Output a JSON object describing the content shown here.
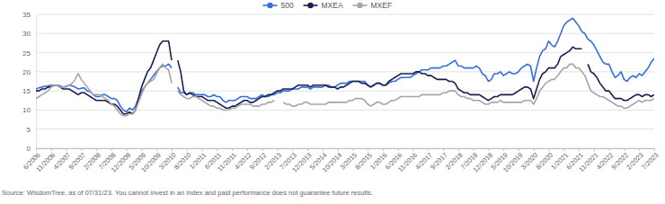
{
  "chart_data": {
    "type": "line",
    "categories": [
      "6/2006",
      null,
      null,
      null,
      null,
      "11/2006",
      null,
      null,
      null,
      null,
      "4/2007",
      null,
      null,
      null,
      null,
      "9/2007",
      null,
      null,
      null,
      null,
      "2/2008",
      null,
      null,
      null,
      null,
      "7/2008",
      null,
      null,
      null,
      null,
      "12/2008",
      null,
      null,
      null,
      null,
      "5/2009",
      null,
      null,
      null,
      null,
      "10/2009",
      null,
      null,
      null,
      null,
      "3/2010",
      null,
      null,
      null,
      null,
      "8/2010",
      null,
      null,
      null,
      null,
      "1/2011",
      null,
      null,
      null,
      null,
      "6/2011",
      null,
      null,
      null,
      null,
      "11/2011",
      null,
      null,
      null,
      null,
      "4/2012",
      null,
      null,
      null,
      null,
      "9/2012",
      null,
      null,
      null,
      null,
      "2/2013",
      null,
      null,
      null,
      null,
      "7/2013",
      null,
      null,
      null,
      null,
      "12/2013",
      null,
      null,
      null,
      null,
      "5/2014",
      null,
      null,
      null,
      null,
      "10/2014",
      null,
      null,
      null,
      null,
      "3/2015",
      null,
      null,
      null,
      null,
      "8/2015",
      null,
      null,
      null,
      null,
      "1/2016",
      null,
      null,
      null,
      null,
      "6/2016",
      null,
      null,
      null,
      null,
      "11/2016",
      null,
      null,
      null,
      null,
      "4/2017",
      null,
      null,
      null,
      null,
      "9/2017",
      null,
      null,
      null,
      null,
      "2/2018",
      null,
      null,
      null,
      null,
      "7/2018",
      null,
      null,
      null,
      null,
      "12/2018",
      null,
      null,
      null,
      null,
      "5/2019",
      null,
      null,
      null,
      null,
      "10/2019",
      null,
      null,
      null,
      null,
      "3/2020",
      null,
      null,
      null,
      null,
      "8/2020",
      null,
      null,
      null,
      null,
      "1/2021",
      null,
      null,
      null,
      null,
      "6/2021",
      null,
      null,
      null,
      null,
      "11/2021",
      null,
      null,
      null,
      null,
      "4/2022",
      null,
      null,
      null,
      null,
      "9/2022",
      null,
      null,
      null,
      null,
      "2/2023",
      null,
      null,
      null,
      null,
      "7/2023"
    ],
    "series": [
      {
        "name": "500",
        "color": "#3470dc",
        "values": [
          15.5,
          15.8,
          16,
          16.2,
          16.3,
          16.5,
          16.5,
          16.5,
          16.3,
          16,
          16.2,
          16.5,
          16.3,
          16,
          15.5,
          15.7,
          15.8,
          15,
          14.8,
          14,
          13.5,
          13.5,
          14,
          14,
          13.5,
          13,
          13,
          12.5,
          11,
          10,
          9.5,
          10.5,
          10,
          11,
          13,
          15,
          16,
          17,
          18,
          19,
          20,
          21,
          21.5,
          21.5,
          22,
          21,
          null,
          16,
          14.5,
          14.5,
          14,
          14.5,
          14.5,
          14,
          14,
          14,
          14,
          13.5,
          13.5,
          14,
          13.5,
          13.5,
          12.5,
          12,
          12.5,
          12.5,
          12.5,
          13,
          13.5,
          13.5,
          13.5,
          13,
          13,
          13,
          13.5,
          14,
          13.5,
          13.5,
          14,
          14,
          14.5,
          14.5,
          15,
          15,
          15,
          15.5,
          15.5,
          15.5,
          16,
          16,
          16,
          15.5,
          16,
          16,
          16,
          16,
          16.5,
          16.5,
          16,
          16,
          16.5,
          17,
          17,
          17,
          17.5,
          17.5,
          17.5,
          17.5,
          17.5,
          17.5,
          16.5,
          16,
          16.5,
          17,
          17,
          16.5,
          16.5,
          17,
          17.5,
          17.5,
          18,
          18.5,
          18.5,
          18.5,
          18.5,
          19,
          19.5,
          20,
          20.5,
          20.5,
          20.5,
          21,
          21,
          21,
          21,
          21.5,
          21.5,
          22,
          22.5,
          23,
          21.5,
          21.5,
          21,
          21,
          21,
          21,
          21.5,
          21,
          19.5,
          19,
          17.5,
          18,
          19.5,
          19.5,
          20,
          19,
          19.5,
          20,
          19.5,
          19.5,
          20,
          21,
          21.5,
          22,
          21.5,
          17.5,
          21,
          24,
          25.5,
          26,
          28,
          27,
          26.5,
          28,
          30,
          32,
          33,
          33.5,
          34,
          33,
          32,
          30.5,
          30,
          28.5,
          28,
          27,
          25.5,
          24,
          22.5,
          22,
          22,
          20,
          18.5,
          19,
          20,
          18,
          17.5,
          18.5,
          19,
          18.5,
          19.5,
          19,
          20,
          21,
          22.5,
          23.5
        ]
      },
      {
        "name": "MXEA",
        "color": "#1c1f4d",
        "values": [
          15,
          15,
          15.5,
          15.5,
          16,
          16,
          16.5,
          16.5,
          16,
          15.5,
          15.5,
          15.5,
          15,
          14.5,
          14,
          14.5,
          14.5,
          14,
          13.5,
          13,
          12.5,
          12.5,
          12.5,
          12.5,
          12,
          11.5,
          11.5,
          11,
          10,
          9,
          9,
          9.5,
          9,
          10,
          13,
          16,
          18,
          20,
          21,
          23,
          25,
          27,
          28,
          28,
          28,
          23,
          null,
          23,
          20,
          15,
          14,
          14.5,
          14,
          13.5,
          13.5,
          13.5,
          13,
          12.5,
          12.5,
          12.5,
          12,
          11.5,
          11,
          10.5,
          10.5,
          11,
          11,
          11.5,
          12,
          12.5,
          12.5,
          12,
          12,
          12.5,
          13,
          13.5,
          13.5,
          14,
          14,
          14.5,
          15,
          15,
          15.5,
          15.5,
          15.5,
          15.5,
          16,
          16.5,
          16.5,
          16.5,
          16.5,
          16,
          16.5,
          16.5,
          16.5,
          16.5,
          16.5,
          16,
          16,
          16,
          15.5,
          16,
          16,
          16.5,
          17,
          17.5,
          17.5,
          17.5,
          17,
          17,
          16.5,
          16,
          16.5,
          17,
          17,
          16.5,
          16.5,
          17.5,
          18,
          18.5,
          19,
          19.5,
          19.5,
          19.5,
          19.5,
          19.5,
          20,
          20,
          19.5,
          19.5,
          19,
          19,
          18.5,
          18,
          18,
          18,
          18,
          17.5,
          17.5,
          17,
          15.5,
          15,
          14.5,
          14.5,
          14,
          14,
          14,
          14,
          13.5,
          13,
          12.5,
          13,
          13.5,
          13.5,
          14,
          14,
          14,
          14,
          14,
          14.5,
          15,
          15.5,
          16,
          16,
          15.5,
          13,
          15.5,
          18,
          19.5,
          20,
          21,
          21,
          21,
          22,
          24,
          24.5,
          25,
          25.5,
          26.5,
          26,
          26,
          26,
          null,
          22,
          20,
          19.5,
          18.5,
          17,
          16,
          15,
          15,
          14,
          13,
          13,
          13,
          12.5,
          12.5,
          13,
          13.5,
          14,
          14,
          13.5,
          14,
          14,
          13.5,
          14
        ]
      },
      {
        "name": "MXEF",
        "color": "#a6a6a6",
        "values": [
          13,
          13.5,
          14,
          14.5,
          15,
          16,
          16.5,
          16.5,
          16,
          16,
          16,
          16.5,
          17,
          18,
          19.5,
          18,
          17,
          16,
          15,
          14,
          14,
          14,
          13.5,
          13,
          12.5,
          11.5,
          11,
          10,
          9,
          8.5,
          8.5,
          9,
          9,
          10,
          12,
          14,
          16,
          17,
          17.5,
          18,
          19.5,
          21,
          22,
          21,
          20.5,
          17,
          null,
          15,
          14,
          13.5,
          13,
          13,
          13.5,
          13.5,
          13,
          12.5,
          12,
          11.5,
          11,
          11,
          10.5,
          10.5,
          10,
          10,
          10,
          10.5,
          10.5,
          11,
          11.5,
          11.5,
          11.5,
          11.5,
          11,
          11,
          11,
          11.5,
          11.5,
          12,
          12,
          12.5,
          null,
          null,
          12,
          11.5,
          11.5,
          11,
          11,
          11.5,
          11.5,
          12,
          12,
          11.5,
          11.5,
          11.5,
          11.5,
          11.5,
          11.5,
          12,
          12,
          12,
          12,
          12,
          12,
          12,
          12.5,
          12.5,
          13,
          13,
          13,
          12.5,
          11.5,
          11,
          11.5,
          12,
          12,
          11.5,
          11.5,
          12,
          12.5,
          12.5,
          13,
          13.5,
          13.5,
          13.5,
          13.5,
          13.5,
          13.5,
          13.5,
          14,
          14,
          14,
          14,
          14,
          14,
          14,
          14.5,
          14.5,
          15,
          15,
          15,
          14,
          13.5,
          13.5,
          13,
          13,
          12.5,
          12.5,
          12.5,
          12,
          11.5,
          11.5,
          12,
          12,
          12,
          12.5,
          12,
          12,
          12,
          12,
          12,
          12,
          12,
          12.5,
          12.5,
          12.5,
          11.5,
          13,
          15,
          16,
          17,
          17.5,
          18,
          18,
          19,
          20,
          21,
          21,
          22,
          22,
          21,
          21,
          20,
          19,
          17,
          15,
          14.5,
          14,
          13.5,
          13.5,
          13,
          12.5,
          12,
          11.5,
          11,
          11,
          10.5,
          10.5,
          11,
          11.5,
          12,
          12.5,
          12,
          12.5,
          12.5,
          12.5,
          13
        ]
      }
    ],
    "ylim": [
      0,
      35
    ],
    "yticks": [
      0,
      5,
      10,
      15,
      20,
      25,
      30,
      35
    ],
    "grid": true,
    "legend": "top",
    "annotations": [
      "Source: WisdomTree, as of 07/31/23. You cannot invest in an Index and past performance does not guarantee future results."
    ]
  }
}
